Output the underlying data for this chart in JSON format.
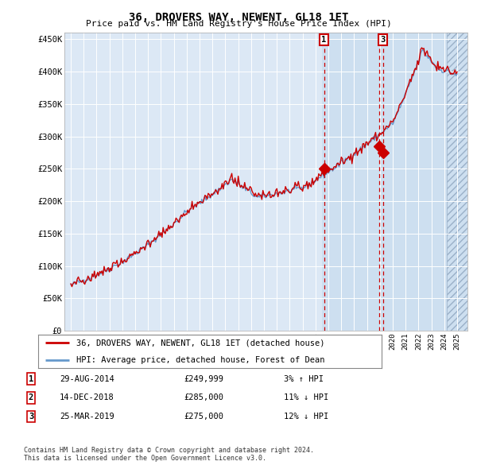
{
  "title": "36, DROVERS WAY, NEWENT, GL18 1ET",
  "subtitle": "Price paid vs. HM Land Registry's House Price Index (HPI)",
  "ylim": [
    0,
    460000
  ],
  "yticks": [
    0,
    50000,
    100000,
    150000,
    200000,
    250000,
    300000,
    350000,
    400000,
    450000
  ],
  "ytick_labels": [
    "£0",
    "£50K",
    "£100K",
    "£150K",
    "£200K",
    "£250K",
    "£300K",
    "£350K",
    "£400K",
    "£450K"
  ],
  "background_color": "#ffffff",
  "plot_bg_color": "#dce8f5",
  "grid_color": "#ffffff",
  "hpi_color": "#6699cc",
  "price_color": "#cc0000",
  "dashed_line_color": "#cc0000",
  "transaction_box_color": "#cc0000",
  "legend_label_price": "36, DROVERS WAY, NEWENT, GL18 1ET (detached house)",
  "legend_label_hpi": "HPI: Average price, detached house, Forest of Dean",
  "transactions": [
    {
      "num": 1,
      "date": "29-AUG-2014",
      "price": 249999,
      "pct": "3%",
      "dir": "↑",
      "year_x": 2014.66,
      "show_box": true
    },
    {
      "num": 2,
      "date": "14-DEC-2018",
      "price": 285000,
      "pct": "11%",
      "dir": "↓",
      "year_x": 2018.96,
      "show_box": false
    },
    {
      "num": 3,
      "date": "25-MAR-2019",
      "price": 275000,
      "pct": "12%",
      "dir": "↓",
      "year_x": 2019.23,
      "show_box": true
    }
  ],
  "footnote1": "Contains HM Land Registry data © Crown copyright and database right 2024.",
  "footnote2": "This data is licensed under the Open Government Licence v3.0.",
  "blue_shade_start": 2014.5,
  "hatch_region_start": 2024.2,
  "xlim_left": 1994.5,
  "xlim_right": 2025.8,
  "seed": 42
}
